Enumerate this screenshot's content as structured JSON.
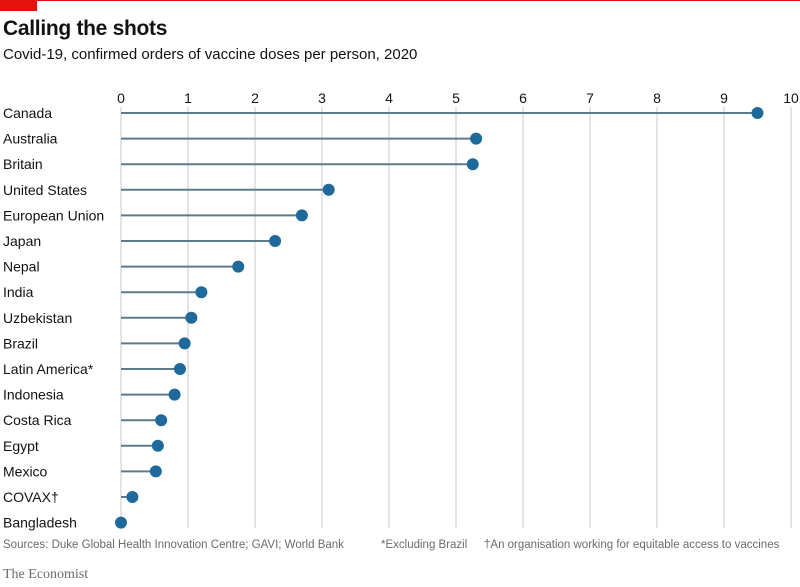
{
  "header": {
    "title": "Calling the shots",
    "subtitle": "Covid-19, confirmed orders of vaccine doses per person, 2020"
  },
  "colors": {
    "accent_red": "#e3120b",
    "dot": "#1f6a9a",
    "stem": "#5e7b8c",
    "grid": "#c9c9c9"
  },
  "chart_data": {
    "type": "scatter",
    "title": "Calling the shots",
    "subtitle": "Covid-19, confirmed orders of vaccine doses per person, 2020",
    "xlim": [
      0,
      10
    ],
    "x_ticks": [
      "0",
      "1",
      "2",
      "3",
      "4",
      "5",
      "6",
      "7",
      "8",
      "9",
      "10"
    ],
    "grid": "vertical",
    "categories": [
      "Canada",
      "Australia",
      "Britain",
      "United States",
      "European Union",
      "Japan",
      "Nepal",
      "India",
      "Uzbekistan",
      "Brazil",
      "Latin America*",
      "Indonesia",
      "Costa Rica",
      "Egypt",
      "Mexico",
      "COVAX†",
      "Bangladesh"
    ],
    "values": [
      9.5,
      5.3,
      5.25,
      3.1,
      2.7,
      2.3,
      1.75,
      1.2,
      1.05,
      0.95,
      0.88,
      0.8,
      0.6,
      0.55,
      0.52,
      0.17,
      0.0
    ]
  },
  "footer": {
    "sources": "Sources: Duke Global Health Innovation Centre; GAVI; World Bank",
    "note1": "*Excluding Brazil",
    "note2": "†An organisation working for equitable access to vaccines",
    "brand": "The Economist"
  }
}
